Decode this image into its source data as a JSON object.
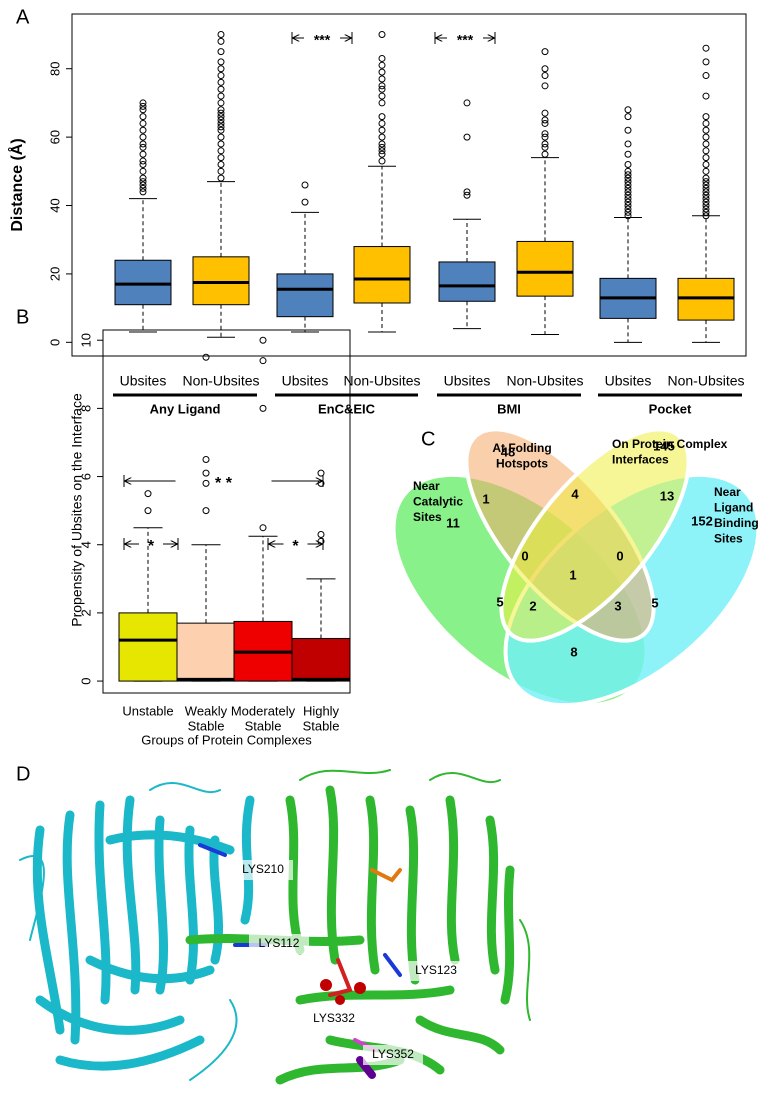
{
  "panel_labels": [
    "A",
    "B",
    "C",
    "D"
  ],
  "chart_data": [
    {
      "type": "box",
      "y_label": "Distance (Å)",
      "categories": [
        "Ubsites",
        "Non-Ubsites",
        "Ubsites",
        "Non-Ubsites",
        "Ubsites",
        "Non-Ubsites",
        "Ubsites",
        "Non-Ubsites"
      ],
      "groups": [
        "Any Ligand",
        "EnC&EIC",
        "BMI",
        "Pocket"
      ],
      "annotations": [
        "***",
        "***"
      ],
      "ylim": [
        -4,
        96
      ],
      "yticks": [
        0,
        20,
        40,
        60,
        80
      ],
      "boxes": [
        {
          "color": "#4f81bd",
          "whisker_low": 3,
          "q1": 11,
          "median": 17,
          "q3": 24,
          "whisker_high": 42,
          "outliers": [
            44,
            45,
            46,
            47,
            48,
            50,
            52,
            53,
            55,
            57,
            58,
            60,
            62,
            64,
            66,
            68,
            69,
            70
          ]
        },
        {
          "color": "#ffc000",
          "whisker_low": 1.5,
          "q1": 11,
          "median": 17.5,
          "q3": 25,
          "whisker_high": 47,
          "outliers": [
            48,
            50,
            52,
            54,
            56,
            58,
            60,
            62,
            63,
            64,
            65,
            66,
            67,
            68,
            70,
            72,
            74,
            76,
            78,
            80,
            82,
            85,
            88,
            90
          ]
        },
        {
          "color": "#4f81bd",
          "whisker_low": 3,
          "q1": 7.5,
          "median": 15.5,
          "q3": 20,
          "whisker_high": 38,
          "outliers": [
            41,
            46
          ]
        },
        {
          "color": "#ffc000",
          "whisker_low": 3,
          "q1": 11.5,
          "median": 18.5,
          "q3": 28,
          "whisker_high": 51.5,
          "outliers": [
            53,
            55,
            56,
            57,
            58,
            60,
            62,
            64,
            66,
            70,
            72,
            74,
            75,
            77,
            79,
            81,
            83,
            90
          ]
        },
        {
          "color": "#4f81bd",
          "whisker_low": 4,
          "q1": 12,
          "median": 16.5,
          "q3": 23.5,
          "whisker_high": 36,
          "outliers": [
            43,
            44,
            60,
            70
          ]
        },
        {
          "color": "#ffc000",
          "whisker_low": 2.3,
          "q1": 13.5,
          "median": 20.5,
          "q3": 29.5,
          "whisker_high": 54,
          "outliers": [
            55,
            57,
            58,
            60,
            61,
            64,
            65,
            67,
            75,
            78,
            80,
            85
          ]
        },
        {
          "color": "#4f81bd",
          "whisker_low": 0,
          "q1": 7,
          "median": 13,
          "q3": 18.7,
          "whisker_high": 36.5,
          "outliers": [
            37,
            38,
            39,
            40,
            41,
            42,
            43,
            44,
            45,
            46,
            47,
            48,
            49,
            50,
            52,
            55,
            58,
            62,
            66,
            68
          ]
        },
        {
          "color": "#ffc000",
          "whisker_low": 0,
          "q1": 6.5,
          "median": 13,
          "q3": 18.7,
          "whisker_high": 37,
          "outliers": [
            37,
            38,
            39,
            40,
            41,
            42,
            43,
            44,
            45,
            46,
            47,
            48,
            50,
            52,
            54,
            56,
            58,
            60,
            62,
            64,
            66,
            72,
            78,
            82,
            86
          ]
        }
      ]
    },
    {
      "type": "box",
      "y_label": "Propensity of Ubsites on the Interface",
      "x_label": "Groups of Protein Complexes",
      "categories": [
        [
          "Unstable"
        ],
        [
          "Weakly",
          "Stable"
        ],
        [
          "Moderately",
          "Stable"
        ],
        [
          "Highly",
          "Stable"
        ]
      ],
      "annotations": [
        "* *",
        "*",
        "*"
      ],
      "ylim": [
        -0.35,
        10.3
      ],
      "yticks": [
        0,
        2,
        4,
        6,
        8,
        10
      ],
      "boxes": [
        {
          "color": "#e6e600",
          "whisker_low": 0,
          "q1": 0,
          "median": 1.2,
          "q3": 2.0,
          "whisker_high": 4.5,
          "outliers": [
            5.0,
            5.5
          ]
        },
        {
          "color": "#fdd0b0",
          "whisker_low": 0,
          "q1": 0,
          "median": 0.05,
          "q3": 1.7,
          "whisker_high": 4.0,
          "outliers": [
            5.0,
            5.8,
            6.1,
            6.5,
            9.5
          ]
        },
        {
          "color": "#ee0000",
          "whisker_low": 0,
          "q1": 0,
          "median": 0.85,
          "q3": 1.75,
          "whisker_high": 4.25,
          "outliers": [
            4.5,
            8.0,
            9.4,
            10.0
          ]
        },
        {
          "color": "#c00000",
          "whisker_low": 0,
          "q1": 0,
          "median": 0.05,
          "q3": 1.25,
          "whisker_high": 3.0,
          "outliers": [
            4.1,
            4.3,
            5.8,
            6.1
          ]
        }
      ]
    }
  ],
  "venn": {
    "sets": [
      [
        "At Folding",
        "Hotspots"
      ],
      [
        "On Protein Complex",
        "Interfaces"
      ],
      [
        "Near",
        "Catalytic",
        "Sites"
      ],
      [
        "Near",
        "Ligand",
        "Binding",
        "Sites"
      ]
    ],
    "regions": [
      48,
      145,
      11,
      152,
      1,
      4,
      13,
      0,
      0,
      1,
      5,
      2,
      3,
      5,
      8
    ]
  },
  "structure": {
    "labels": [
      "LYS210",
      "LYS112",
      "LYS123",
      "LYS332",
      "LYS352"
    ]
  }
}
